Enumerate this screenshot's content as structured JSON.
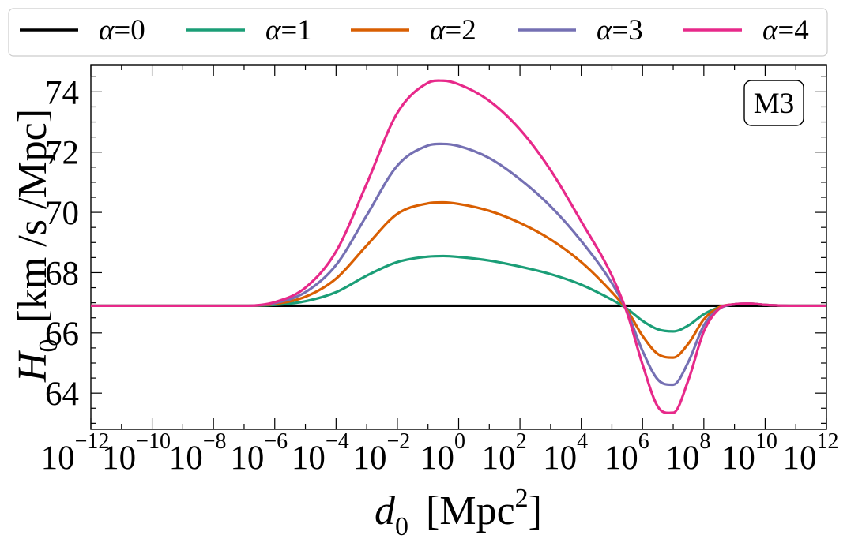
{
  "chart_data": {
    "type": "line",
    "panel_label": "M3",
    "xlabel_base": "d",
    "xlabel_sub": "0",
    "xlabel_unit_main": "[Mpc",
    "xlabel_unit_sup": "2",
    "xlabel_unit_end": "]",
    "ylabel_base": "H",
    "ylabel_sub": "0",
    "ylabel_unit": "[km /s /Mpc]",
    "x_scale": "log",
    "xlim_log10": [
      -12,
      12
    ],
    "ylim": [
      62.8,
      74.9
    ],
    "x_ticks": [
      {
        "base": "10",
        "exp": "−12",
        "log10": -12
      },
      {
        "base": "10",
        "exp": "−10",
        "log10": -10
      },
      {
        "base": "10",
        "exp": "−8",
        "log10": -8
      },
      {
        "base": "10",
        "exp": "−6",
        "log10": -6
      },
      {
        "base": "10",
        "exp": "−4",
        "log10": -4
      },
      {
        "base": "10",
        "exp": "−2",
        "log10": -2
      },
      {
        "base": "10",
        "exp": "0",
        "log10": 0
      },
      {
        "base": "10",
        "exp": "2",
        "log10": 2
      },
      {
        "base": "10",
        "exp": "4",
        "log10": 4
      },
      {
        "base": "10",
        "exp": "6",
        "log10": 6
      },
      {
        "base": "10",
        "exp": "8",
        "log10": 8
      },
      {
        "base": "10",
        "exp": "10",
        "log10": 10
      },
      {
        "base": "10",
        "exp": "12",
        "log10": 12
      }
    ],
    "y_ticks": [
      {
        "label": "64",
        "value": 64
      },
      {
        "label": "66",
        "value": 66
      },
      {
        "label": "68",
        "value": 68
      },
      {
        "label": "70",
        "value": 70
      },
      {
        "label": "72",
        "value": 72
      },
      {
        "label": "74",
        "value": 74
      }
    ],
    "legend_position": "top, outside plot",
    "series": [
      {
        "name": "α=0",
        "greek": "α",
        "eq": "=0",
        "color": "#000000",
        "log10_x": [
          -12,
          12
        ],
        "y": [
          66.9,
          66.9
        ]
      },
      {
        "name": "α=1",
        "greek": "α",
        "eq": "=1",
        "color": "#1b9e77",
        "log10_x": [
          -12,
          -7,
          -6,
          -5,
          -4,
          -3,
          -2,
          -1,
          -0.5,
          0,
          1,
          2,
          3,
          4,
          5,
          5.5,
          6,
          6.5,
          7,
          7.5,
          8,
          8.5,
          9,
          9.5,
          10,
          11,
          12
        ],
        "y": [
          66.9,
          66.9,
          66.93,
          67.05,
          67.35,
          67.9,
          68.35,
          68.53,
          68.55,
          68.52,
          68.4,
          68.2,
          67.95,
          67.6,
          67.1,
          66.8,
          66.4,
          66.12,
          66.05,
          66.25,
          66.62,
          66.85,
          66.95,
          66.97,
          66.93,
          66.9,
          66.9
        ]
      },
      {
        "name": "α=2",
        "greek": "α",
        "eq": "=2",
        "color": "#d95f02",
        "log10_x": [
          -12,
          -7,
          -6,
          -5,
          -4,
          -3,
          -2,
          -1,
          -0.5,
          0,
          1,
          2,
          3,
          4,
          5,
          5.5,
          6,
          6.5,
          7,
          7.5,
          8,
          8.5,
          9,
          9.5,
          10,
          11,
          12
        ],
        "y": [
          66.9,
          66.9,
          66.96,
          67.2,
          67.8,
          68.9,
          69.95,
          70.3,
          70.33,
          70.28,
          70.05,
          69.65,
          69.1,
          68.35,
          67.35,
          66.75,
          65.9,
          65.3,
          65.18,
          65.65,
          66.45,
          66.85,
          66.95,
          66.97,
          66.93,
          66.9,
          66.9
        ]
      },
      {
        "name": "α=3",
        "greek": "α",
        "eq": "=3",
        "color": "#7570b3",
        "log10_x": [
          -12,
          -7,
          -6,
          -5,
          -4,
          -3,
          -2,
          -1,
          -0.5,
          0,
          1,
          2,
          3,
          4,
          5,
          5.5,
          6,
          6.5,
          7,
          7.5,
          8,
          8.5,
          9,
          9.5,
          10,
          11,
          12
        ],
        "y": [
          66.9,
          66.9,
          66.99,
          67.35,
          68.25,
          69.9,
          71.55,
          72.22,
          72.27,
          72.2,
          71.8,
          71.1,
          70.2,
          69.05,
          67.65,
          66.7,
          65.4,
          64.45,
          64.28,
          65.05,
          66.25,
          66.8,
          66.95,
          66.97,
          66.93,
          66.9,
          66.9
        ]
      },
      {
        "name": "α=4",
        "greek": "α",
        "eq": "=4",
        "color": "#e7298a",
        "log10_x": [
          -12,
          -7,
          -6,
          -5,
          -4,
          -3,
          -2,
          -1,
          -0.5,
          0,
          1,
          2,
          3,
          4,
          5,
          5.5,
          6,
          6.5,
          7,
          7.5,
          8,
          8.5,
          9,
          9.5,
          10,
          11,
          12
        ],
        "y": [
          66.9,
          66.9,
          67.02,
          67.5,
          68.7,
          70.95,
          73.3,
          74.3,
          74.37,
          74.25,
          73.7,
          72.75,
          71.4,
          69.7,
          67.9,
          66.65,
          64.95,
          63.55,
          63.35,
          64.45,
          66.05,
          66.8,
          66.95,
          66.97,
          66.93,
          66.9,
          66.9
        ]
      }
    ]
  }
}
